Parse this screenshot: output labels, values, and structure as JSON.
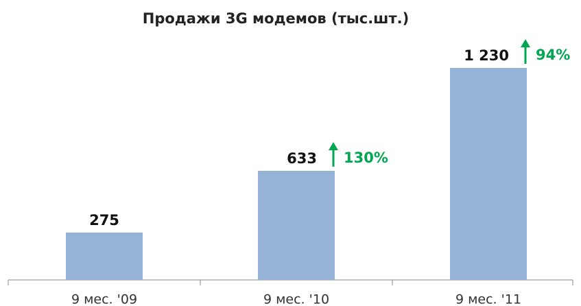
{
  "chart_data": {
    "type": "bar",
    "title": "Продажи 3G модемов (тыс.шт.)",
    "categories": [
      "9 мес. '09",
      "9 мес. '10",
      "9 мес. '11"
    ],
    "values": [
      275,
      633,
      1230
    ],
    "value_labels": [
      "275",
      "633",
      "1 230"
    ],
    "annotations": [
      "130%",
      "94%"
    ],
    "annotation_color": "#00a651",
    "color": "#95b3d7"
  }
}
